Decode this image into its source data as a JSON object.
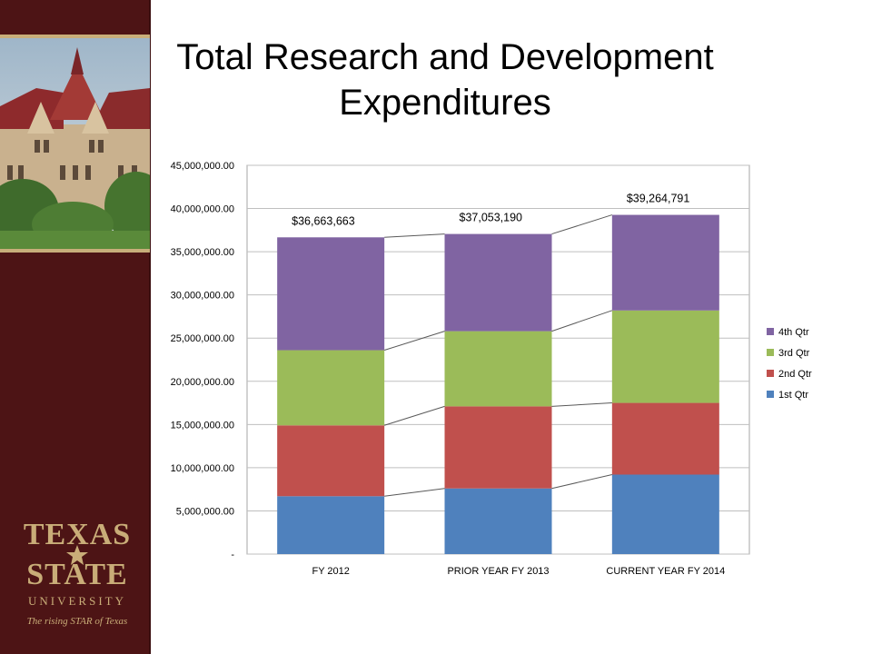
{
  "slide": {
    "title_line1": "Total Research and Development",
    "title_line2": "Expenditures"
  },
  "logo": {
    "text_top": "TEXAS",
    "text_mid": "STATE",
    "text_sub": "UNIVERSITY",
    "tagline": "The rising STAR of Texas"
  },
  "colors": {
    "sidebar": "#4d1415",
    "gold": "#c9ad78",
    "q1": "#4f81bd",
    "q2": "#c0504d",
    "q3": "#9bbb59",
    "q4": "#8064a2"
  },
  "chart_data": {
    "type": "bar",
    "stacked": true,
    "categories": [
      "FY 2012",
      "PRIOR YEAR FY 2013",
      "CURRENT YEAR FY 2014"
    ],
    "series": [
      {
        "name": "1st Qtr",
        "values": [
          6700000,
          7600000,
          9200000
        ]
      },
      {
        "name": "2nd Qtr",
        "values": [
          8200000,
          9500000,
          8300000
        ]
      },
      {
        "name": "3rd Qtr",
        "values": [
          8700000,
          8700000,
          10700000
        ]
      },
      {
        "name": "4th Qtr",
        "values": [
          13063663,
          11253190,
          11064791
        ]
      }
    ],
    "totals": [
      "$36,663,663",
      "$37,053,190",
      "$39,264,791"
    ],
    "ylim": [
      0,
      45000000
    ],
    "yticks": [
      0,
      5000000,
      10000000,
      15000000,
      20000000,
      25000000,
      30000000,
      35000000,
      40000000,
      45000000
    ],
    "ytick_labels": [
      "-",
      "5,000,000.00",
      "10,000,000.00",
      "15,000,000.00",
      "20,000,000.00",
      "25,000,000.00",
      "30,000,000.00",
      "35,000,000.00",
      "40,000,000.00",
      "45,000,000.00"
    ],
    "grid": true,
    "series_lines": true,
    "legend_position": "right",
    "legend_order": [
      "4th Qtr",
      "3rd Qtr",
      "2nd Qtr",
      "1st Qtr"
    ]
  }
}
